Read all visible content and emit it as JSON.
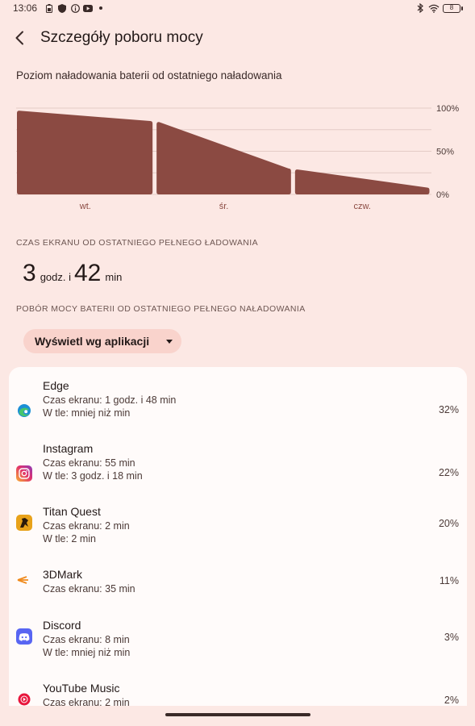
{
  "status_bar": {
    "time": "13:06",
    "battery_level": "8"
  },
  "header": {
    "title": "Szczegóły poboru mocy"
  },
  "battery_chart": {
    "caption": "Poziom naładowania baterii od ostatniego naładowania",
    "chart_data": {
      "type": "area",
      "categories": [
        "wt.",
        "śr.",
        "czw."
      ],
      "y_ticks": [
        "100%",
        "50%",
        "0%"
      ],
      "ylim": [
        0,
        100
      ],
      "segments": [
        {
          "x": [
            0.0,
            1.0
          ],
          "y": [
            97,
            85
          ]
        },
        {
          "x": [
            1.0,
            2.0
          ],
          "y": [
            84,
            30
          ]
        },
        {
          "x": [
            2.0,
            3.0
          ],
          "y": [
            29,
            8
          ]
        }
      ],
      "grid": true,
      "fill_color": "#8b4a42"
    }
  },
  "screen_time": {
    "label": "CZAS EKRANU OD OSTATNIEGO PEŁNEGO ŁADOWANIA",
    "hours": "3",
    "hours_unit": "godz. i",
    "minutes": "42",
    "minutes_unit": "min"
  },
  "usage": {
    "label": "POBÓR MOCY BATERII OD OSTATNIEGO PEŁNEGO NAŁADOWANIA",
    "dropdown_value": "Wyświetl wg aplikacji",
    "apps": [
      {
        "name": "Edge",
        "line1": "Czas ekranu: 1 godz. i 48 min",
        "line2": "W tle: mniej niż min",
        "percent": "32%",
        "icon": "edge-icon"
      },
      {
        "name": "Instagram",
        "line1": "Czas ekranu: 55 min",
        "line2": "W tle: 3 godz. i 18 min",
        "percent": "22%",
        "icon": "instagram-icon"
      },
      {
        "name": "Titan Quest",
        "line1": "Czas ekranu: 2 min",
        "line2": "W tle: 2 min",
        "percent": "20%",
        "icon": "titan-quest-icon"
      },
      {
        "name": "3DMark",
        "line1": "Czas ekranu: 35 min",
        "line2": "",
        "percent": "11%",
        "icon": "3dmark-icon"
      },
      {
        "name": "Discord",
        "line1": "Czas ekranu: 8 min",
        "line2": "W tle: mniej niż min",
        "percent": "3%",
        "icon": "discord-icon"
      },
      {
        "name": "YouTube Music",
        "line1": "Czas ekranu: 2 min",
        "line2": "",
        "percent": "2%",
        "icon": "youtube-music-icon"
      }
    ]
  },
  "colors": {
    "background": "#fce8e4",
    "chart_fill": "#8b4a42",
    "dropdown_bg": "#f9d3cc",
    "list_bg": "#fffbfa"
  }
}
